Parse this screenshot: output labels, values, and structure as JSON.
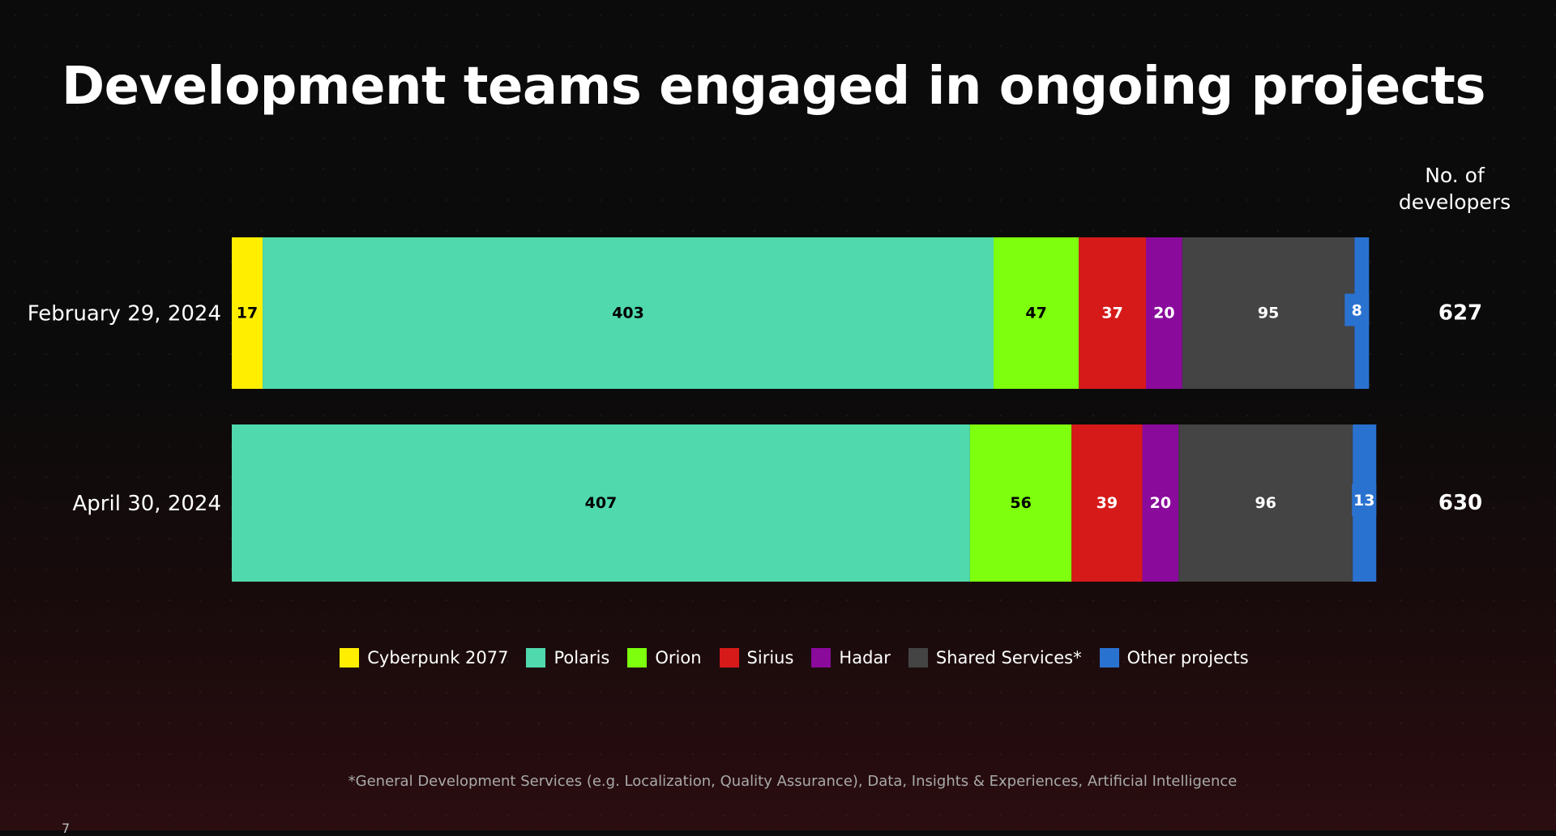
{
  "chart_data": {
    "type": "bar",
    "orientation": "horizontal",
    "stacked": true,
    "title": "Development teams engaged in ongoing projects",
    "categories": [
      "February 29, 2024",
      "April 30, 2024"
    ],
    "series": [
      {
        "name": "Cyberpunk 2077",
        "color": "#ffee00",
        "label_color": "#000000",
        "values": [
          17,
          0
        ]
      },
      {
        "name": "Polaris",
        "color": "#4fd9ad",
        "label_color": "#000000",
        "values": [
          403,
          407
        ]
      },
      {
        "name": "Orion",
        "color": "#7dff0d",
        "label_color": "#000000",
        "values": [
          47,
          56
        ]
      },
      {
        "name": "Sirius",
        "color": "#d61a1a",
        "label_color": "#ffffff",
        "values": [
          37,
          39
        ]
      },
      {
        "name": "Hadar",
        "color": "#8a0a9c",
        "label_color": "#ffffff",
        "values": [
          20,
          20
        ]
      },
      {
        "name": "Shared Services*",
        "color": "#444444",
        "label_color": "#ffffff",
        "values": [
          95,
          96
        ]
      },
      {
        "name": "Other projects",
        "color": "#2a72d0",
        "label_color": "#ffffff",
        "values": [
          8,
          13
        ]
      }
    ],
    "total_header": "No. of\ndevelopers",
    "totals": [
      627,
      630
    ],
    "legend_position": "bottom-center",
    "grid": false
  },
  "footnote": "*General Development Services (e.g. Localization, Quality Assurance), Data, Insights & Experiences, Artificial Intelligence",
  "page_number": "7"
}
